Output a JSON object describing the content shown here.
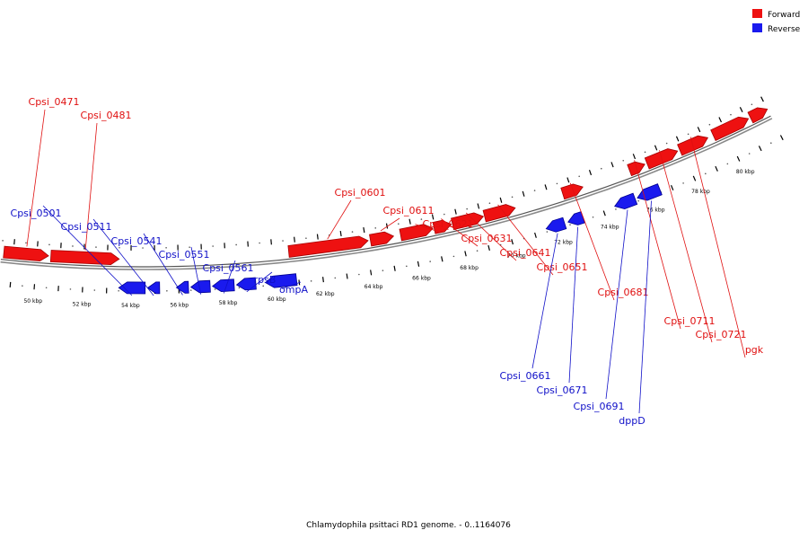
{
  "colors": {
    "forward": "#ee1111",
    "forward_stroke": "#a50000",
    "reverse": "#1a1aee",
    "reverse_stroke": "#000090",
    "backbone": "#8a8a8a",
    "forward_label": "#e01010",
    "reverse_label": "#1010c8"
  },
  "legend": {
    "forward_label": "Forward",
    "reverse_label": "Reverse"
  },
  "caption": "Chlamydophila psittaci RD1 genome. - 0..1164076",
  "scale_labels": [
    "50 kbp",
    "52 kbp",
    "54 kbp",
    "56 kbp",
    "58 kbp",
    "60 kbp",
    "62 kbp",
    "64 kbp",
    "66 kbp",
    "68 kbp",
    "70 kbp",
    "72 kbp",
    "74 kbp",
    "76 kbp",
    "78 kbp",
    "80 kbp"
  ],
  "genes_forward": [
    {
      "name": "Cpsi_0471",
      "start_kbp": 48.6,
      "end_kbp": 50.5
    },
    {
      "name": "Cpsi_0481",
      "start_kbp": 50.6,
      "end_kbp": 53.5
    },
    {
      "name": "Cpsi_0601",
      "start_kbp": 60.7,
      "end_kbp": 64.1
    },
    {
      "name": "Cpsi_0611",
      "start_kbp": 64.2,
      "end_kbp": 65.2
    },
    {
      "name": "Cpsi_0621",
      "start_kbp": 65.5,
      "end_kbp": 66.9
    },
    {
      "name": "Cpsi_0631",
      "start_kbp": 66.95,
      "end_kbp": 67.7
    },
    {
      "name": "Cpsi_0641",
      "start_kbp": 67.75,
      "end_kbp": 69.1
    },
    {
      "name": "Cpsi_0651",
      "start_kbp": 69.15,
      "end_kbp": 70.5
    },
    {
      "name": "Cpsi_0681",
      "start_kbp": 72.6,
      "end_kbp": 73.5
    },
    {
      "name": "Cpsi_0711",
      "start_kbp": 75.6,
      "end_kbp": 76.3
    },
    {
      "name": "Cpsi_0721",
      "start_kbp": 76.4,
      "end_kbp": 77.8
    },
    {
      "name": "pgk",
      "start_kbp": 77.9,
      "end_kbp": 79.2
    },
    {
      "name": "",
      "start_kbp": 79.45,
      "end_kbp": 81.1
    },
    {
      "name": "",
      "start_kbp": 81.2,
      "end_kbp": 82.0
    }
  ],
  "genes_reverse": [
    {
      "name": "Cpsi_0501",
      "start_kbp": 53.5,
      "end_kbp": 54.6
    },
    {
      "name": "Cpsi_0511",
      "start_kbp": 54.7,
      "end_kbp": 55.2
    },
    {
      "name": "Cpsi_0541",
      "start_kbp": 55.9,
      "end_kbp": 56.4
    },
    {
      "name": "Cpsi_0551",
      "start_kbp": 56.5,
      "end_kbp": 57.3
    },
    {
      "name": "Cpsi_0561",
      "start_kbp": 57.4,
      "end_kbp": 58.3
    },
    {
      "name": "rpsB",
      "start_kbp": 58.4,
      "end_kbp": 59.2
    },
    {
      "name": "ompA",
      "start_kbp": 59.6,
      "end_kbp": 60.9
    },
    {
      "name": "Cpsi_0661",
      "start_kbp": 71.5,
      "end_kbp": 72.3
    },
    {
      "name": "Cpsi_0671",
      "start_kbp": 72.45,
      "end_kbp": 73.1
    },
    {
      "name": "Cpsi_0691",
      "start_kbp": 74.5,
      "end_kbp": 75.4
    },
    {
      "name": "dppD",
      "start_kbp": 75.5,
      "end_kbp": 76.5
    }
  ]
}
